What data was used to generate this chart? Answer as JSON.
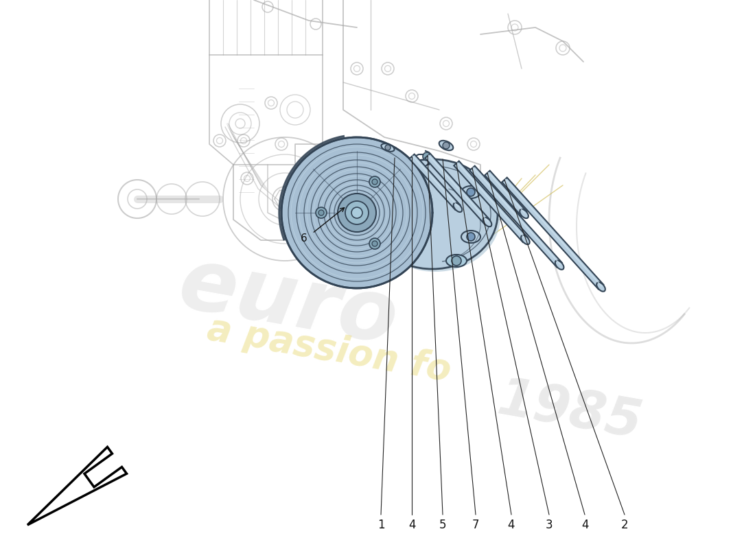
{
  "background_color": "#ffffff",
  "compressor_fill": "#b8cfe0",
  "compressor_stroke": "#334455",
  "bg_line_color": "#aaaaaa",
  "fg_line_color": "#334455",
  "part_labels": [
    "1",
    "4",
    "5",
    "7",
    "4",
    "3",
    "4",
    "2"
  ],
  "watermark_euro": "euro",
  "watermark_passion": "a passion fo",
  "watermark_year": "1985"
}
